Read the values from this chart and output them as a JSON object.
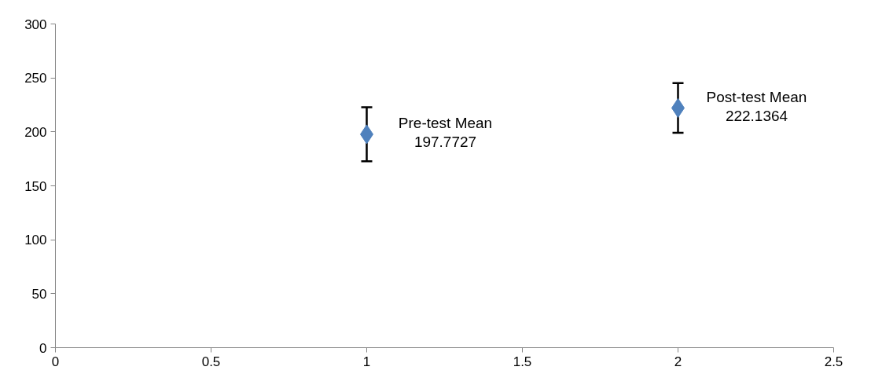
{
  "chart_data": {
    "type": "scatter",
    "x": [
      1,
      2
    ],
    "values": [
      197.7727,
      222.1364
    ],
    "errors": [
      25,
      23
    ],
    "color": "#4f81bd",
    "marker": "diamond",
    "xlim": [
      0,
      2.5
    ],
    "xticks": [
      0,
      0.5,
      1,
      1.5,
      2,
      2.5
    ],
    "ylim": [
      0,
      300
    ],
    "yticks": [
      0,
      50,
      100,
      150,
      200,
      250,
      300
    ],
    "grid": false,
    "annotations": [
      {
        "text": "Pre-test Mean\n197.7727",
        "x": 1,
        "y": 197.7727
      },
      {
        "text": "Post-test Mean\n222.1364",
        "x": 2,
        "y": 222.1364
      }
    ]
  }
}
